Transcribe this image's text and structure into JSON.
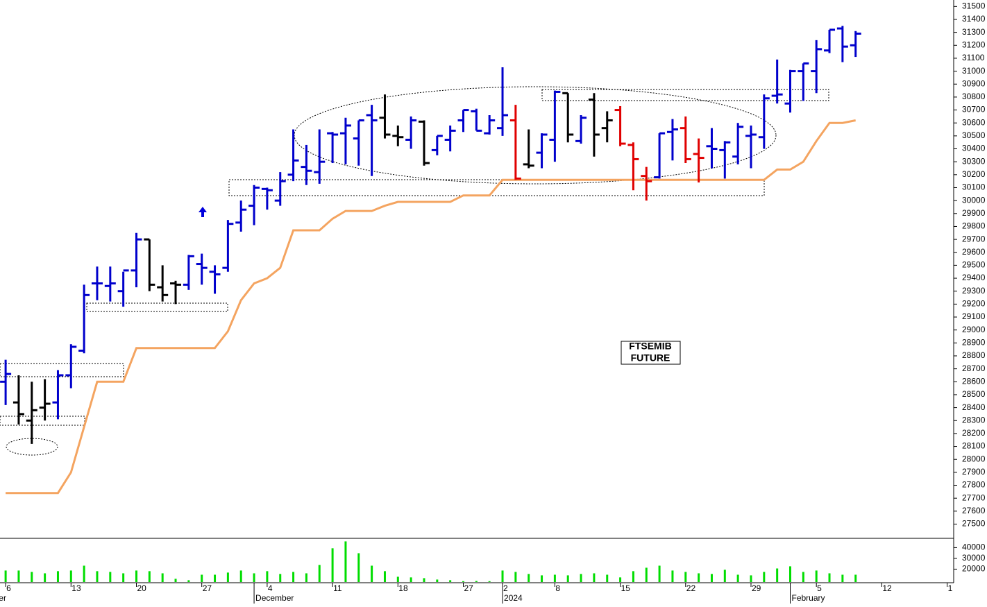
{
  "chart_data": {
    "type": "ohlc",
    "open": [
      28600,
      28440,
      28300,
      28400,
      28440,
      28650,
      28840,
      29360,
      29340,
      29300,
      29460,
      29700,
      29330,
      29360,
      29350,
      29510,
      29450,
      29480,
      29830,
      29960,
      30090,
      30000,
      30200,
      30260,
      30220,
      30520,
      30520,
      30480,
      30660,
      30640,
      30500,
      30470,
      30610,
      30390,
      30470,
      30620,
      30690,
      30520,
      30560,
      30620,
      30280,
      30370,
      30470,
      30830,
      30460,
      30780,
      30560,
      30700,
      30430,
      30190,
      30180,
      30530,
      30560,
      30360,
      30420,
      30390,
      30340,
      30500,
      30490,
      30810,
      30750,
      31000,
      31000,
      31160,
      31330,
      31200
    ],
    "high": [
      28770,
      28650,
      28600,
      28620,
      28690,
      28890,
      29350,
      29490,
      29490,
      29450,
      29750,
      29700,
      29500,
      29380,
      29580,
      29590,
      29500,
      29850,
      30000,
      30120,
      30100,
      30220,
      30550,
      30430,
      30550,
      30530,
      30640,
      30620,
      30740,
      30820,
      30580,
      30650,
      30620,
      30500,
      30580,
      30700,
      30710,
      30660,
      31030,
      30740,
      30550,
      30520,
      30850,
      30830,
      30660,
      30830,
      30690,
      30730,
      30450,
      30260,
      30520,
      30630,
      30650,
      30480,
      30560,
      30460,
      30600,
      30580,
      30820,
      31090,
      31010,
      31060,
      31240,
      31320,
      31350,
      31310
    ],
    "low": [
      28420,
      28270,
      28120,
      28300,
      28310,
      28550,
      28820,
      29230,
      29220,
      29180,
      29330,
      29300,
      29220,
      29200,
      29310,
      29350,
      29280,
      29450,
      29760,
      29810,
      29930,
      29960,
      30150,
      30120,
      30130,
      30290,
      30280,
      30270,
      30190,
      30480,
      30420,
      30400,
      30270,
      30350,
      30380,
      30530,
      30540,
      30510,
      30500,
      30160,
      30250,
      30250,
      30300,
      30450,
      30440,
      30340,
      30450,
      30420,
      30080,
      30000,
      30170,
      30310,
      30290,
      30140,
      30250,
      30170,
      30280,
      30250,
      30400,
      30750,
      30680,
      30770,
      30830,
      31140,
      31070,
      31110
    ],
    "close": [
      28660,
      28350,
      28380,
      28430,
      28650,
      28870,
      29270,
      29360,
      29360,
      29460,
      29700,
      29350,
      29270,
      29350,
      29570,
      29480,
      29430,
      29820,
      29930,
      30100,
      30080,
      30150,
      30310,
      30230,
      30300,
      30510,
      30580,
      30620,
      30620,
      30510,
      30490,
      30620,
      30290,
      30500,
      30540,
      30700,
      30540,
      30620,
      30660,
      30170,
      30270,
      30510,
      30840,
      30510,
      30640,
      30510,
      30620,
      30440,
      30320,
      30150,
      30520,
      30550,
      30320,
      30330,
      30400,
      30450,
      30570,
      30510,
      30790,
      30820,
      31000,
      31060,
      31170,
      31320,
      31190,
      31290
    ],
    "colors": [
      "#0000cc",
      "#000000",
      "#000000",
      "#000000",
      "#0000cc",
      "#0000cc",
      "#0000cc",
      "#0000cc",
      "#0000cc",
      "#0000cc",
      "#0000cc",
      "#000000",
      "#000000",
      "#000000",
      "#0000cc",
      "#0000cc",
      "#0000cc",
      "#0000cc",
      "#0000cc",
      "#0000cc",
      "#0000cc",
      "#0000cc",
      "#0000cc",
      "#0000cc",
      "#0000cc",
      "#0000cc",
      "#0000cc",
      "#0000cc",
      "#0000cc",
      "#000000",
      "#000000",
      "#0000cc",
      "#000000",
      "#0000cc",
      "#0000cc",
      "#0000cc",
      "#0000cc",
      "#0000cc",
      "#0000cc",
      "#e00000",
      "#000000",
      "#0000cc",
      "#0000cc",
      "#000000",
      "#0000cc",
      "#000000",
      "#000000",
      "#e00000",
      "#e00000",
      "#e00000",
      "#0000cc",
      "#0000cc",
      "#e00000",
      "#e00000",
      "#0000cc",
      "#0000cc",
      "#0000cc",
      "#0000cc",
      "#0000cc",
      "#0000cc",
      "#0000cc",
      "#0000cc",
      "#0000cc",
      "#0000cc",
      "#0000cc",
      "#0000cc"
    ],
    "stop_line": {
      "color": "#f4a460",
      "values": [
        27740,
        27740,
        27740,
        27740,
        27740,
        27900,
        28250,
        28600,
        28600,
        28600,
        28860,
        28860,
        28860,
        28860,
        28860,
        28860,
        28860,
        28990,
        29230,
        29360,
        29400,
        29480,
        29770,
        29770,
        29770,
        29860,
        29920,
        29920,
        29920,
        29960,
        29990,
        29990,
        29990,
        29990,
        29990,
        30040,
        30040,
        30040,
        30160,
        30160,
        30160,
        30160,
        30160,
        30160,
        30160,
        30160,
        30160,
        30160,
        30160,
        30160,
        30160,
        30160,
        30160,
        30160,
        30160,
        30160,
        30160,
        30160,
        30160,
        30240,
        30240,
        30300,
        30460,
        30600,
        30600,
        30620
      ]
    },
    "volume": {
      "color": "#00dd00",
      "ylim": [
        8000,
        48000
      ],
      "yticks": [
        20000,
        30000,
        40000
      ],
      "values": [
        18700,
        18700,
        17400,
        16100,
        18100,
        18700,
        23200,
        18100,
        17400,
        16100,
        18700,
        18100,
        16100,
        11000,
        9700,
        14800,
        14800,
        16800,
        18700,
        16100,
        18100,
        15500,
        17400,
        16100,
        23900,
        39400,
        45800,
        34800,
        23200,
        18100,
        12900,
        12300,
        11600,
        10300,
        9700,
        8800,
        9000,
        8800,
        18700,
        17400,
        15500,
        14200,
        14800,
        14200,
        15500,
        16100,
        14800,
        12300,
        18100,
        21300,
        23200,
        18700,
        17400,
        16100,
        15500,
        19400,
        14800,
        14200,
        17400,
        20600,
        22600,
        17400,
        18700,
        16100,
        14800,
        14800
      ]
    },
    "ylim": [
      27390,
      31550
    ],
    "yticks": [
      27500,
      27600,
      27700,
      27800,
      27900,
      28000,
      28100,
      28200,
      28300,
      28400,
      28500,
      28600,
      28700,
      28800,
      28900,
      29000,
      29100,
      29200,
      29300,
      29400,
      29500,
      29600,
      29700,
      29800,
      29900,
      30000,
      30100,
      30200,
      30300,
      30400,
      30500,
      30600,
      30700,
      30800,
      30900,
      31000,
      31100,
      31200,
      31300,
      31400,
      31500
    ],
    "xlim": [
      -0.43,
      72.5
    ],
    "xticks": [
      {
        "value": 0,
        "label": "6"
      },
      {
        "value": 5,
        "label": "13"
      },
      {
        "value": 10,
        "label": "20"
      },
      {
        "value": 15,
        "label": "27"
      },
      {
        "value": 20,
        "label": "4"
      },
      {
        "value": 25,
        "label": "11"
      },
      {
        "value": 30,
        "label": "18"
      },
      {
        "value": 35,
        "label": "27"
      },
      {
        "value": 38,
        "label": "2"
      },
      {
        "value": 42,
        "label": "8"
      },
      {
        "value": 47,
        "label": "15"
      },
      {
        "value": 52,
        "label": "22"
      },
      {
        "value": 57,
        "label": "29"
      },
      {
        "value": 62,
        "label": "5"
      },
      {
        "value": 67,
        "label": "12"
      },
      {
        "value": 72,
        "label": "1"
      }
    ],
    "month_ticks": [
      {
        "value": -3,
        "label": "November"
      },
      {
        "value": 19,
        "label": "December"
      },
      {
        "value": 38,
        "label": "2024"
      },
      {
        "value": 60,
        "label": "February"
      }
    ],
    "annotation": [
      "FTSEMIB",
      "FUTURE"
    ]
  }
}
